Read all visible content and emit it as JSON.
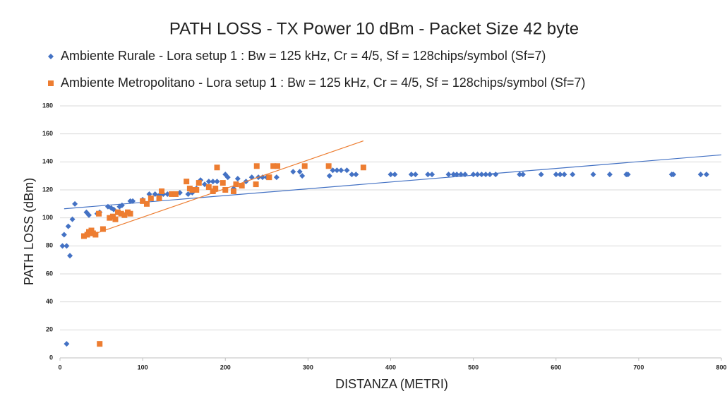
{
  "chart_data": {
    "type": "scatter",
    "title": "PATH LOSS - TX Power 10 dBm - Packet Size 42 byte",
    "x_label": "DISTANZA (METRI)",
    "y_label": "PATH LOSS (dBm)",
    "xlim": [
      0,
      800
    ],
    "xticks": [
      0,
      100,
      200,
      300,
      400,
      500,
      600,
      700,
      800
    ],
    "ylim": [
      0,
      180
    ],
    "yticks": [
      0,
      20,
      40,
      60,
      80,
      100,
      120,
      140,
      160,
      180
    ],
    "grid": true,
    "legend": "top",
    "series": [
      {
        "name": "Ambiente Rurale - Lora setup 1 : Bw = 125 kHz, Cr = 4/5, Sf = 128chips/symbol (Sf=7)",
        "color": "#4472c4",
        "marker": "diamond",
        "x": [
          3,
          5,
          8,
          10,
          12,
          15,
          18,
          8,
          32,
          35,
          45,
          48,
          58,
          62,
          65,
          72,
          75,
          85,
          88,
          100,
          108,
          115,
          120,
          125,
          130,
          140,
          145,
          155,
          160,
          165,
          170,
          175,
          180,
          185,
          190,
          200,
          203,
          210,
          215,
          225,
          232,
          240,
          245,
          250,
          262,
          282,
          290,
          293,
          326,
          330,
          335,
          340,
          347,
          353,
          358,
          400,
          405,
          425,
          430,
          445,
          450,
          470,
          476,
          480,
          485,
          490,
          500,
          505,
          510,
          515,
          520,
          527,
          556,
          560,
          582,
          600,
          605,
          610,
          620,
          645,
          665,
          685,
          687,
          740,
          742,
          775,
          782
        ],
        "values": [
          80,
          88,
          80,
          94,
          73,
          99,
          110,
          10,
          104,
          102,
          103,
          104,
          108,
          107,
          106,
          108,
          109,
          112,
          112,
          113,
          117,
          117,
          116,
          117,
          117,
          117,
          118,
          117,
          118,
          121,
          127,
          124,
          126,
          126,
          126,
          131,
          129,
          121,
          128,
          126,
          129,
          129,
          129,
          129,
          129,
          133,
          133,
          130,
          130,
          134,
          134,
          134,
          134,
          131,
          131,
          131,
          131,
          131,
          131,
          131,
          131,
          131,
          131,
          131,
          131,
          131,
          131,
          131,
          131,
          131,
          131,
          131,
          131,
          131,
          131,
          131,
          131,
          131,
          131,
          131,
          131,
          131,
          131,
          131,
          131,
          131,
          131
        ],
        "trendline": {
          "x": [
            5,
            800
          ],
          "values": [
            106.5,
            145
          ]
        }
      },
      {
        "name": "Ambiente Metropolitano - Lora setup 1 : Bw = 125 kHz, Cr = 4/5, Sf = 128chips/symbol (Sf=7)",
        "color": "#ed7d31",
        "marker": "square",
        "x": [
          29,
          33,
          35,
          38,
          40,
          43,
          47,
          48,
          52,
          60,
          64,
          67,
          70,
          74,
          78,
          82,
          85,
          100,
          105,
          110,
          120,
          123,
          135,
          140,
          153,
          157,
          160,
          165,
          168,
          180,
          185,
          188,
          190,
          197,
          200,
          210,
          213,
          220,
          237,
          238,
          253,
          258,
          263,
          296,
          325,
          367
        ],
        "values": [
          87,
          88,
          90,
          91,
          89,
          88,
          103,
          10,
          92,
          100,
          101,
          99,
          104,
          103,
          102,
          104,
          103,
          112,
          110,
          114,
          114,
          119,
          117,
          117,
          126,
          121,
          120,
          120,
          125,
          122,
          119,
          121,
          136,
          125,
          120,
          119,
          124,
          123,
          124,
          137,
          129,
          137,
          137,
          137,
          137,
          136
        ],
        "trendline": {
          "x": [
            29,
            367
          ],
          "values": [
            86,
            155
          ]
        }
      }
    ]
  }
}
